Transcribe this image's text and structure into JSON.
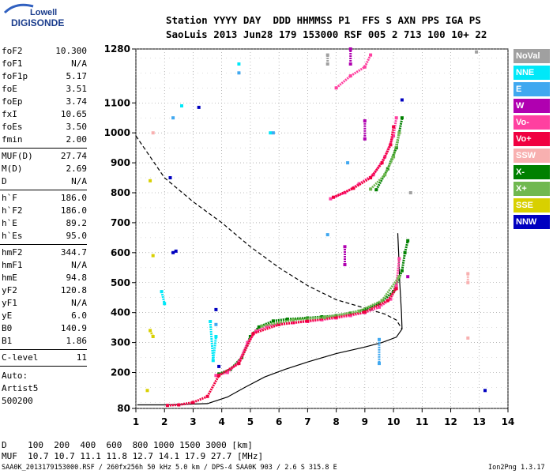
{
  "logo": {
    "line1": "Lowell",
    "line2": "DIGISONDE"
  },
  "header": {
    "row1": "Station YYYY DAY  DDD HHMMSS P1  FFS S AXN PPS IGA PS",
    "row2": "SaoLuis 2013 Jun28 179 153000 RSF 005 2 713 100 10+ 22"
  },
  "params": {
    "group1": [
      {
        "label": "foF2",
        "value": "10.300"
      },
      {
        "label": "foF1",
        "value": "N/A"
      },
      {
        "label": "foF1p",
        "value": "5.17"
      },
      {
        "label": "foE",
        "value": "3.51"
      },
      {
        "label": "foEp",
        "value": "3.74"
      },
      {
        "label": "fxI",
        "value": "10.65"
      },
      {
        "label": "foEs",
        "value": "3.50"
      },
      {
        "label": "fmin",
        "value": "2.00"
      }
    ],
    "group2": [
      {
        "label": "MUF(D)",
        "value": "27.74"
      },
      {
        "label": "M(D)",
        "value": "2.69"
      },
      {
        "label": "D",
        "value": "N/A"
      }
    ],
    "group3": [
      {
        "label": "h`F",
        "value": "186.0"
      },
      {
        "label": "h`F2",
        "value": "186.0"
      },
      {
        "label": "h`E",
        "value": "89.2"
      },
      {
        "label": "h`Es",
        "value": "95.0"
      }
    ],
    "group4": [
      {
        "label": "hmF2",
        "value": "344.7"
      },
      {
        "label": "hmF1",
        "value": "N/A"
      },
      {
        "label": "hmE",
        "value": "94.8"
      },
      {
        "label": "yF2",
        "value": "120.8"
      },
      {
        "label": "yF1",
        "value": "N/A"
      },
      {
        "label": "yE",
        "value": "6.0"
      },
      {
        "label": "B0",
        "value": "140.9"
      },
      {
        "label": "B1",
        "value": "1.86"
      }
    ],
    "group5": [
      {
        "label": "C-level",
        "value": "11"
      }
    ],
    "autoscale": [
      "Auto:",
      "Artist5",
      "500200"
    ]
  },
  "legend": [
    {
      "label": "NoVal",
      "color": "#a0a0a0"
    },
    {
      "label": "NNE",
      "color": "#00e8f8"
    },
    {
      "label": "E",
      "color": "#40a8f0"
    },
    {
      "label": "W",
      "color": "#b000b0"
    },
    {
      "label": "Vo-",
      "color": "#ff40a0"
    },
    {
      "label": "Vo+",
      "color": "#f00040"
    },
    {
      "label": "SSW",
      "color": "#f8b0b0"
    },
    {
      "label": "X-",
      "color": "#008000"
    },
    {
      "label": "X+",
      "color": "#70b850"
    },
    {
      "label": "SSE",
      "color": "#d8d000"
    },
    {
      "label": "NNW",
      "color": "#0000c0"
    }
  ],
  "footer": {
    "d_row": "D    100  200  400  600  800 1000 1500 3000 [km]",
    "muf_row": "MUF  10.7 10.7 11.1 11.8 12.7 14.1 17.9 27.7 [MHz]",
    "file_row": "SAA0K_2013179153000.RSF / 260fx256h 50 kHz 5.0 km / DPS-4 SAA0K 903 / 2.6 S 315.8 E",
    "version": "Ion2Png 1.3.17"
  },
  "chart_data": {
    "type": "scatter",
    "xlim": [
      1,
      14
    ],
    "ylim": [
      80,
      1280
    ],
    "x_ticks": [
      1,
      2,
      3,
      4,
      5,
      6,
      7,
      8,
      9,
      10,
      11,
      12,
      13,
      14
    ],
    "y_ticks": [
      80,
      200,
      300,
      400,
      500,
      600,
      700,
      800,
      900,
      1000,
      1100,
      1280
    ],
    "grid": "dotted",
    "series": [
      {
        "style": "line-solid",
        "color": "#000000",
        "points": [
          [
            1.05,
            92
          ],
          [
            2,
            92
          ],
          [
            3.5,
            96
          ],
          [
            4.2,
            118
          ],
          [
            4.8,
            150
          ],
          [
            5.5,
            185
          ],
          [
            6.2,
            210
          ],
          [
            7,
            235
          ],
          [
            8,
            263
          ],
          [
            9,
            285
          ],
          [
            9.6,
            300
          ],
          [
            10.1,
            318
          ],
          [
            10.3,
            345
          ],
          [
            10.28,
            400
          ],
          [
            10.22,
            500
          ],
          [
            10.18,
            600
          ],
          [
            10.15,
            665
          ]
        ]
      },
      {
        "style": "line-dashed",
        "color": "#000000",
        "points": [
          [
            1,
            990
          ],
          [
            1.5,
            920
          ],
          [
            2,
            850
          ],
          [
            3,
            770
          ],
          [
            4,
            700
          ],
          [
            5,
            620
          ],
          [
            6,
            550
          ],
          [
            7,
            490
          ],
          [
            8,
            443
          ],
          [
            9,
            415
          ],
          [
            9.7,
            395
          ],
          [
            10.1,
            375
          ],
          [
            10.3,
            345
          ]
        ]
      },
      {
        "name": "X-",
        "color": "#008000",
        "points": [
          [
            3.9,
            195
          ],
          [
            4.3,
            210
          ],
          [
            4.7,
            250
          ],
          [
            5,
            320
          ],
          [
            5.3,
            352
          ],
          [
            5.8,
            372
          ],
          [
            6.3,
            378
          ],
          [
            7,
            382
          ],
          [
            7.5,
            386
          ],
          [
            8,
            390
          ],
          [
            8.5,
            398
          ],
          [
            9,
            410
          ],
          [
            9.5,
            430
          ],
          [
            10,
            470
          ],
          [
            10.3,
            540
          ],
          [
            10.4,
            600
          ],
          [
            10.5,
            640
          ],
          [
            9.4,
            810
          ],
          [
            9.8,
            880
          ],
          [
            10.1,
            950
          ],
          [
            10.3,
            1050
          ]
        ]
      },
      {
        "name": "Vo-",
        "color": "#ff40a0",
        "points": [
          [
            3.8,
            190
          ],
          [
            4.2,
            200
          ],
          [
            4.6,
            235
          ],
          [
            4.9,
            300
          ],
          [
            5.2,
            338
          ],
          [
            5.6,
            355
          ],
          [
            6,
            362
          ],
          [
            6.5,
            366
          ],
          [
            7,
            370
          ],
          [
            7.5,
            376
          ],
          [
            8,
            382
          ],
          [
            8.5,
            390
          ],
          [
            9,
            400
          ],
          [
            9.5,
            418
          ],
          [
            9.9,
            445
          ],
          [
            10.1,
            490
          ],
          [
            10.2,
            580
          ],
          [
            7.8,
            780
          ],
          [
            8.3,
            800
          ],
          [
            8.8,
            830
          ],
          [
            9.3,
            860
          ],
          [
            9.7,
            920
          ],
          [
            10,
            990
          ],
          [
            10.1,
            1050
          ],
          [
            8,
            1150
          ],
          [
            8.5,
            1190
          ],
          [
            9,
            1220
          ],
          [
            9.2,
            1260
          ]
        ]
      },
      {
        "name": "Vo+",
        "color": "#f00040",
        "points": [
          [
            2.1,
            90
          ],
          [
            2.5,
            92
          ],
          [
            3,
            100
          ],
          [
            3.5,
            120
          ],
          [
            3.9,
            190
          ],
          [
            4.6,
            230
          ],
          [
            5.1,
            330
          ],
          [
            6,
            360
          ],
          [
            7,
            372
          ],
          [
            8,
            385
          ],
          [
            9,
            402
          ],
          [
            9.8,
            440
          ],
          [
            10.1,
            480
          ],
          [
            7.9,
            785
          ],
          [
            8.6,
            815
          ],
          [
            9.2,
            850
          ],
          [
            9.6,
            900
          ],
          [
            9.9,
            960
          ],
          [
            10,
            1020
          ]
        ]
      },
      {
        "name": "X+",
        "color": "#70b850",
        "points": [
          [
            5.4,
            355
          ],
          [
            6.5,
            376
          ],
          [
            7.6,
            384
          ],
          [
            8.8,
            405
          ],
          [
            9.6,
            440
          ],
          [
            10.2,
            520
          ],
          [
            9.2,
            812
          ],
          [
            9.7,
            860
          ],
          [
            10,
            920
          ],
          [
            10.2,
            1000
          ]
        ]
      },
      {
        "name": "W",
        "color": "#b000b0",
        "points": [
          [
            8.3,
            560
          ],
          [
            8.3,
            620
          ],
          [
            8.5,
            1230
          ],
          [
            8.5,
            1280
          ],
          [
            9,
            980
          ],
          [
            9,
            1040
          ],
          [
            10.5,
            520
          ]
        ]
      },
      {
        "name": "NNE",
        "color": "#00e8f8",
        "points": [
          [
            1.9,
            470
          ],
          [
            2,
            430
          ],
          [
            2.6,
            1090
          ],
          [
            3.6,
            370
          ],
          [
            3.7,
            240
          ],
          [
            3.8,
            320
          ],
          [
            4.6,
            1230
          ],
          [
            5.7,
            1000
          ]
        ]
      },
      {
        "name": "E",
        "color": "#40a8f0",
        "points": [
          [
            2.3,
            1050
          ],
          [
            3.8,
            360
          ],
          [
            4.6,
            1200
          ],
          [
            5.8,
            1000
          ],
          [
            7.7,
            660
          ],
          [
            8.4,
            900
          ],
          [
            9.5,
            310
          ],
          [
            9.5,
            230
          ]
        ]
      },
      {
        "name": "NNW",
        "color": "#0000c0",
        "points": [
          [
            2.2,
            850
          ],
          [
            2.3,
            600
          ],
          [
            2.4,
            605
          ],
          [
            3.2,
            1085
          ],
          [
            3.8,
            410
          ],
          [
            3.9,
            220
          ],
          [
            10.3,
            1110
          ],
          [
            13.2,
            140
          ]
        ]
      },
      {
        "name": "SSW",
        "color": "#f8b0b0",
        "points": [
          [
            1.6,
            1000
          ],
          [
            12.6,
            315
          ],
          [
            12.6,
            500
          ],
          [
            12.6,
            530
          ]
        ]
      },
      {
        "name": "SSE",
        "color": "#d8d000",
        "points": [
          [
            1.5,
            840
          ],
          [
            1.6,
            590
          ],
          [
            1.5,
            340
          ],
          [
            1.6,
            320
          ],
          [
            1.4,
            140
          ]
        ]
      },
      {
        "name": "NoVal",
        "color": "#a0a0a0",
        "points": [
          [
            7.7,
            1230
          ],
          [
            7.7,
            1260
          ],
          [
            10.6,
            800
          ],
          [
            12.9,
            1270
          ]
        ]
      }
    ]
  }
}
